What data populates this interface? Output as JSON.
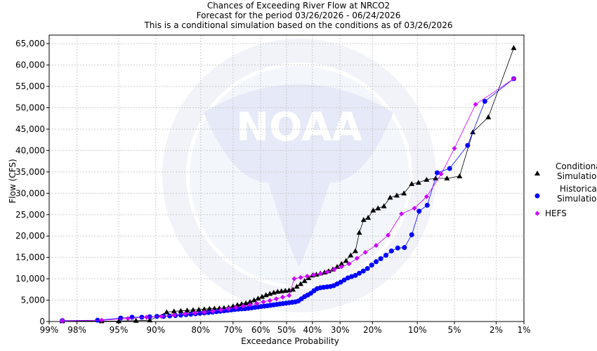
{
  "chart_data": {
    "type": "line",
    "title": [
      "Chances of Exceeding River Flow at NRCO2",
      "Forecast for the period 03/26/2026 - 06/24/2026",
      "This is a conditional simulation based on the conditions as of 03/26/2026"
    ],
    "xlabel": "Exceedance Probability",
    "ylabel": "Flow (CFS)",
    "x_scale": "normal-probability (reversed)",
    "x_ticks": [
      {
        "p": 99,
        "label": "99%"
      },
      {
        "p": 98,
        "label": "98%"
      },
      {
        "p": 95,
        "label": "95%"
      },
      {
        "p": 90,
        "label": "90%"
      },
      {
        "p": 80,
        "label": "80%"
      },
      {
        "p": 70,
        "label": "70%"
      },
      {
        "p": 60,
        "label": "60%"
      },
      {
        "p": 50,
        "label": "50%"
      },
      {
        "p": 40,
        "label": "40%"
      },
      {
        "p": 30,
        "label": "30%"
      },
      {
        "p": 20,
        "label": "20%"
      },
      {
        "p": 10,
        "label": "10%"
      },
      {
        "p": 5,
        "label": "5%"
      },
      {
        "p": 2,
        "label": "2%"
      },
      {
        "p": 1,
        "label": "1%"
      }
    ],
    "xlim": [
      99,
      1
    ],
    "ylim": [
      0,
      67000
    ],
    "y_ticks": [
      {
        "v": 0,
        "label": "0"
      },
      {
        "v": 5000,
        "label": "5,000"
      },
      {
        "v": 10000,
        "label": "10,000"
      },
      {
        "v": 15000,
        "label": "15,000"
      },
      {
        "v": 20000,
        "label": "20,000"
      },
      {
        "v": 25000,
        "label": "25,000"
      },
      {
        "v": 30000,
        "label": "30,000"
      },
      {
        "v": 35000,
        "label": "35,000"
      },
      {
        "v": 40000,
        "label": "40,000"
      },
      {
        "v": 45000,
        "label": "45,000"
      },
      {
        "v": 50000,
        "label": "50,000"
      },
      {
        "v": 55000,
        "label": "55,000"
      },
      {
        "v": 60000,
        "label": "60,000"
      },
      {
        "v": 65000,
        "label": "65,000"
      }
    ],
    "grid": true,
    "legend_position": "right",
    "watermark": "NOAA seal",
    "series": [
      {
        "name": [
          "Conditional",
          "Simulation"
        ],
        "marker": "triangle",
        "color": "#000000",
        "points": [
          [
            98.6,
            100
          ],
          [
            96.5,
            100
          ],
          [
            95.0,
            100
          ],
          [
            93.0,
            200
          ],
          [
            91.0,
            300
          ],
          [
            88.0,
            2200
          ],
          [
            86.5,
            2400
          ],
          [
            85.0,
            2500
          ],
          [
            83.5,
            2600
          ],
          [
            82.0,
            2700
          ],
          [
            80.5,
            2800
          ],
          [
            79.0,
            2900
          ],
          [
            77.5,
            3000
          ],
          [
            76.0,
            3050
          ],
          [
            74.5,
            3100
          ],
          [
            73.0,
            3200
          ],
          [
            71.5,
            3300
          ],
          [
            70.0,
            3600
          ],
          [
            68.5,
            3900
          ],
          [
            67.0,
            4100
          ],
          [
            65.5,
            4300
          ],
          [
            64.0,
            4600
          ],
          [
            62.5,
            5000
          ],
          [
            61.0,
            5400
          ],
          [
            59.5,
            5800
          ],
          [
            58.0,
            6200
          ],
          [
            56.5,
            6500
          ],
          [
            55.0,
            6800
          ],
          [
            53.5,
            7000
          ],
          [
            52.0,
            7100
          ],
          [
            50.5,
            7200
          ],
          [
            49.0,
            7300
          ],
          [
            47.5,
            7500
          ],
          [
            46.0,
            8200
          ],
          [
            44.5,
            8800
          ],
          [
            43.0,
            9500
          ],
          [
            41.5,
            10200
          ],
          [
            40.0,
            10800
          ],
          [
            38.5,
            11000
          ],
          [
            37.0,
            11300
          ],
          [
            35.5,
            11500
          ],
          [
            34.0,
            11800
          ],
          [
            32.5,
            12200
          ],
          [
            31.0,
            12800
          ],
          [
            29.5,
            13500
          ],
          [
            28.0,
            14200
          ],
          [
            26.5,
            15500
          ],
          [
            25.0,
            16500
          ],
          [
            23.8,
            20800
          ],
          [
            22.5,
            23800
          ],
          [
            21.2,
            24300
          ],
          [
            19.8,
            26000
          ],
          [
            18.5,
            26500
          ],
          [
            17.0,
            27000
          ],
          [
            15.5,
            29000
          ],
          [
            14.0,
            29500
          ],
          [
            12.5,
            30000
          ],
          [
            11.0,
            32200
          ],
          [
            9.8,
            32500
          ],
          [
            8.5,
            33200
          ],
          [
            7.2,
            33500
          ],
          [
            5.8,
            33500
          ],
          [
            4.5,
            34000
          ],
          [
            3.4,
            44300
          ],
          [
            2.4,
            47800
          ],
          [
            1.3,
            64000
          ]
        ]
      },
      {
        "name": [
          "Historical",
          "Simulation"
        ],
        "marker": "circle",
        "color": "#0000ff",
        "points": [
          [
            98.6,
            200
          ],
          [
            96.8,
            300
          ],
          [
            94.8,
            800
          ],
          [
            93.5,
            1000
          ],
          [
            92.2,
            1000
          ],
          [
            91.0,
            1100
          ],
          [
            89.8,
            1200
          ],
          [
            88.6,
            1200
          ],
          [
            87.4,
            1300
          ],
          [
            86.2,
            1400
          ],
          [
            85.0,
            1500
          ],
          [
            83.8,
            1600
          ],
          [
            82.6,
            1700
          ],
          [
            81.4,
            1800
          ],
          [
            80.2,
            1900
          ],
          [
            79.0,
            2000
          ],
          [
            77.8,
            2100
          ],
          [
            76.6,
            2200
          ],
          [
            75.4,
            2300
          ],
          [
            74.2,
            2400
          ],
          [
            73.0,
            2500
          ],
          [
            71.8,
            2600
          ],
          [
            70.6,
            2700
          ],
          [
            69.4,
            2800
          ],
          [
            68.2,
            2900
          ],
          [
            67.0,
            2950
          ],
          [
            65.8,
            3000
          ],
          [
            64.6,
            3100
          ],
          [
            63.4,
            3200
          ],
          [
            62.2,
            3300
          ],
          [
            61.0,
            3400
          ],
          [
            59.8,
            3500
          ],
          [
            58.6,
            3600
          ],
          [
            57.4,
            3700
          ],
          [
            56.2,
            3800
          ],
          [
            55.0,
            3900
          ],
          [
            53.8,
            4000
          ],
          [
            52.6,
            4100
          ],
          [
            51.4,
            4200
          ],
          [
            50.2,
            4300
          ],
          [
            49.0,
            4400
          ],
          [
            47.8,
            4500
          ],
          [
            46.6,
            4600
          ],
          [
            45.4,
            4800
          ],
          [
            44.2,
            5300
          ],
          [
            43.0,
            5800
          ],
          [
            41.8,
            6200
          ],
          [
            40.6,
            6600
          ],
          [
            39.4,
            7200
          ],
          [
            38.2,
            7700
          ],
          [
            37.0,
            7900
          ],
          [
            35.8,
            8000
          ],
          [
            34.6,
            8100
          ],
          [
            33.4,
            8200
          ],
          [
            32.2,
            8400
          ],
          [
            31.0,
            8800
          ],
          [
            29.8,
            9200
          ],
          [
            28.6,
            9700
          ],
          [
            27.4,
            10200
          ],
          [
            26.2,
            10500
          ],
          [
            25.0,
            10800
          ],
          [
            23.8,
            11300
          ],
          [
            22.6,
            11800
          ],
          [
            21.4,
            12400
          ],
          [
            20.2,
            13200
          ],
          [
            19.0,
            14000
          ],
          [
            17.8,
            14700
          ],
          [
            16.5,
            15500
          ],
          [
            15.2,
            16500
          ],
          [
            13.8,
            17200
          ],
          [
            12.4,
            17300
          ],
          [
            11.0,
            20300
          ],
          [
            9.7,
            25800
          ],
          [
            8.4,
            27200
          ],
          [
            7.0,
            34800
          ],
          [
            5.5,
            35800
          ],
          [
            3.8,
            41200
          ],
          [
            2.6,
            51500
          ],
          [
            1.3,
            56800
          ]
        ]
      },
      {
        "name": [
          "HEFS"
        ],
        "marker": "diamond",
        "color": "#cc00ff",
        "points": [
          [
            98.6,
            150
          ],
          [
            96.5,
            300
          ],
          [
            94.0,
            700
          ],
          [
            91.5,
            1000
          ],
          [
            89.0,
            1200
          ],
          [
            86.5,
            1500
          ],
          [
            84.0,
            1800
          ],
          [
            81.5,
            2000
          ],
          [
            79.0,
            2200
          ],
          [
            76.5,
            2400
          ],
          [
            74.0,
            2700
          ],
          [
            71.5,
            3000
          ],
          [
            69.0,
            3300
          ],
          [
            66.5,
            3600
          ],
          [
            64.0,
            3900
          ],
          [
            61.5,
            4200
          ],
          [
            59.0,
            4600
          ],
          [
            56.5,
            4900
          ],
          [
            54.0,
            5300
          ],
          [
            51.5,
            5700
          ],
          [
            49.0,
            6100
          ],
          [
            47.0,
            10000
          ],
          [
            44.5,
            10300
          ],
          [
            42.0,
            10600
          ],
          [
            39.5,
            10900
          ],
          [
            37.0,
            11200
          ],
          [
            34.5,
            11600
          ],
          [
            32.0,
            12200
          ],
          [
            29.5,
            12800
          ],
          [
            27.0,
            13500
          ],
          [
            24.5,
            14800
          ],
          [
            22.0,
            16200
          ],
          [
            19.0,
            17800
          ],
          [
            16.0,
            20200
          ],
          [
            13.0,
            25200
          ],
          [
            10.5,
            26500
          ],
          [
            8.5,
            29200
          ],
          [
            6.5,
            34500
          ],
          [
            5.0,
            40500
          ],
          [
            3.2,
            50800
          ],
          [
            1.3,
            56800
          ]
        ]
      }
    ]
  }
}
